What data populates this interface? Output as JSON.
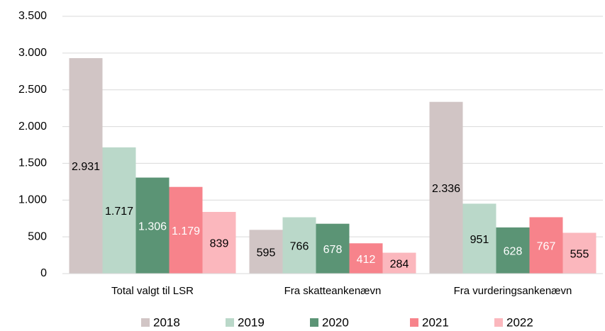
{
  "chart_data": {
    "type": "bar",
    "categories": [
      "Total valgt til LSR",
      "Fra skatteankenævn",
      "Fra vurderingsankenævn"
    ],
    "series": [
      {
        "name": "2018",
        "color": "#d1c5c5",
        "label_color": "#000000",
        "values": [
          2931,
          595,
          2336
        ],
        "value_labels": [
          "2.931",
          "595",
          "2.336"
        ]
      },
      {
        "name": "2019",
        "color": "#bad8c9",
        "label_color": "#000000",
        "values": [
          1717,
          766,
          951
        ],
        "value_labels": [
          "1.717",
          "766",
          "951"
        ]
      },
      {
        "name": "2020",
        "color": "#5b9475",
        "label_color": "#ffffff",
        "values": [
          1306,
          678,
          628
        ],
        "value_labels": [
          "1.306",
          "678",
          "628"
        ]
      },
      {
        "name": "2021",
        "color": "#f7838b",
        "label_color": "#ffffff",
        "values": [
          1179,
          412,
          767
        ],
        "value_labels": [
          "1.179",
          "412",
          "767"
        ]
      },
      {
        "name": "2022",
        "color": "#fbb7bd",
        "label_color": "#000000",
        "values": [
          839,
          284,
          555
        ],
        "value_labels": [
          "839",
          "284",
          "555"
        ]
      }
    ],
    "ylim": [
      0,
      3500
    ],
    "yticks": [
      0,
      500,
      {
        "value": 1000,
        "label": "1.000"
      },
      {
        "value": 1500,
        "label": "1.500"
      },
      {
        "value": 2000,
        "label": "2.000"
      },
      {
        "value": 2500,
        "label": "2.500"
      },
      {
        "value": 3000,
        "label": "3.000"
      },
      {
        "value": 3500,
        "label": "3.500"
      }
    ],
    "grid": true,
    "legend": "bottom"
  }
}
